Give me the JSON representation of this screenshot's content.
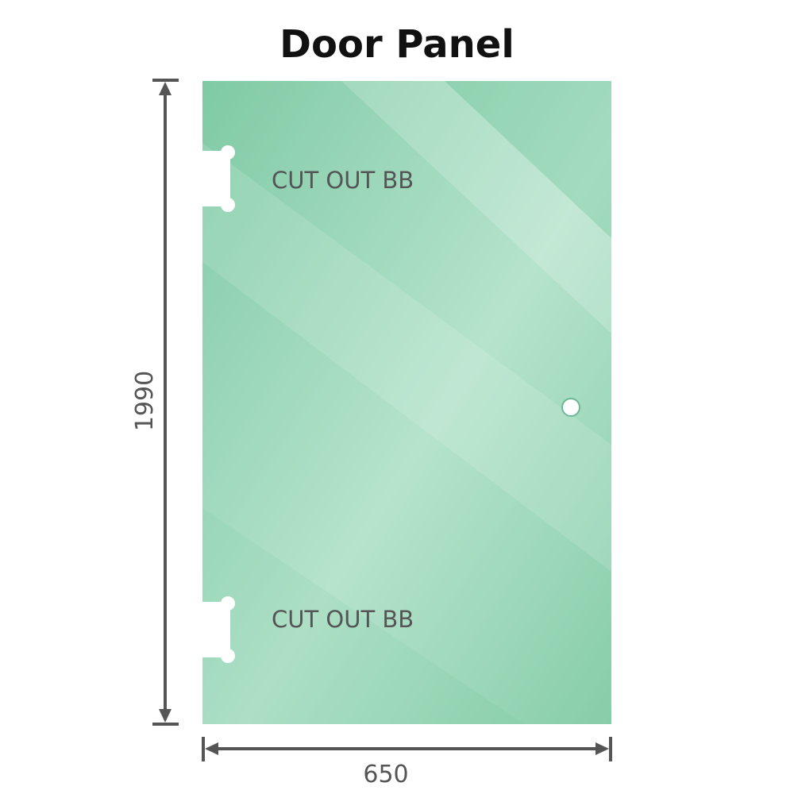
{
  "title": "Door Panel",
  "panel": {
    "color": "#8dd1b0",
    "cutouts": [
      {
        "label": "CUT OUT BB"
      },
      {
        "label": "CUT OUT BB"
      }
    ]
  },
  "dimensions": {
    "height": "1990",
    "width": "650",
    "arrow_color": "#555555"
  }
}
